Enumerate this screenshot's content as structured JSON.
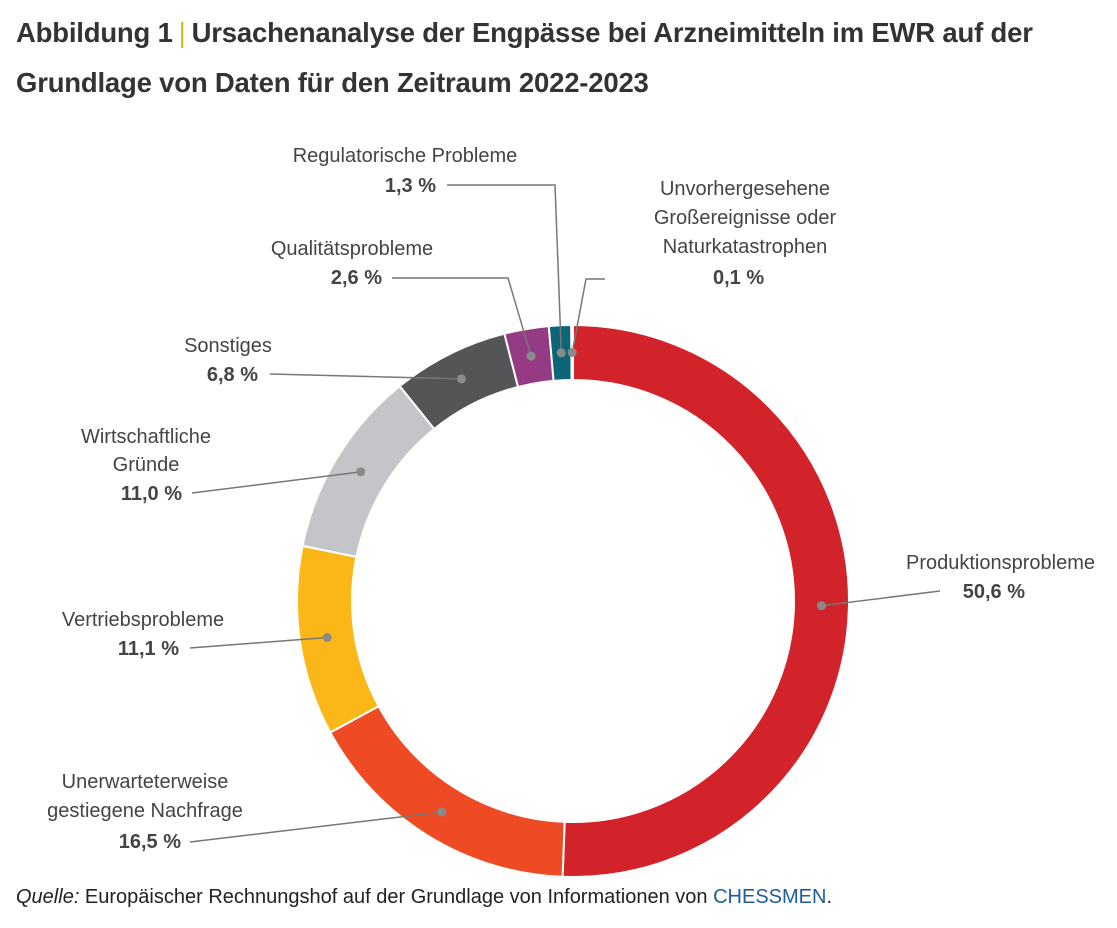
{
  "title": {
    "prefix": "Abbildung 1",
    "text": "Ursachenanalyse der Engpässe bei Arzneimitteln im EWR auf der Grundlage von Daten für den Zeitraum 2022-2023"
  },
  "chart_data": {
    "type": "pie",
    "donut": true,
    "start": "top",
    "direction": "clockwise",
    "slices": [
      {
        "label": [
          "Produktionsprobleme"
        ],
        "value": 50.6,
        "value_label": "50,6 %",
        "color": "#d2232a"
      },
      {
        "label": [
          "Unerwarteterweise",
          "gestiegene Nachfrage"
        ],
        "value": 16.5,
        "value_label": "16,5 %",
        "color": "#ee4b25"
      },
      {
        "label": [
          "Vertriebsprobleme"
        ],
        "value": 11.1,
        "value_label": "11,1 %",
        "color": "#fbb717"
      },
      {
        "label": [
          "Wirtschaftliche",
          "Gründe"
        ],
        "value": 11.0,
        "value_label": "11,0 %",
        "color": "#c4c5c8"
      },
      {
        "label": [
          "Sonstiges"
        ],
        "value": 6.8,
        "value_label": "6,8 %",
        "color": "#545557"
      },
      {
        "label": [
          "Qualitätsprobleme"
        ],
        "value": 2.6,
        "value_label": "2,6 %",
        "color": "#953a84"
      },
      {
        "label": [
          "Regulatorische Probleme"
        ],
        "value": 1.3,
        "value_label": "1,3 %",
        "color": "#0d6678"
      },
      {
        "label": [
          "Unvorhergesehene",
          "Großereignisse oder",
          "Naturkatastrophen"
        ],
        "value": 0.1,
        "value_label": "0,1 %",
        "color": "#3b3f8a"
      }
    ]
  },
  "source": {
    "prefix": "Quelle:",
    "text": " Europäischer Rechnungshof auf der Grundlage von Informationen von ",
    "org": "CHESSMEN",
    "suffix": "."
  }
}
